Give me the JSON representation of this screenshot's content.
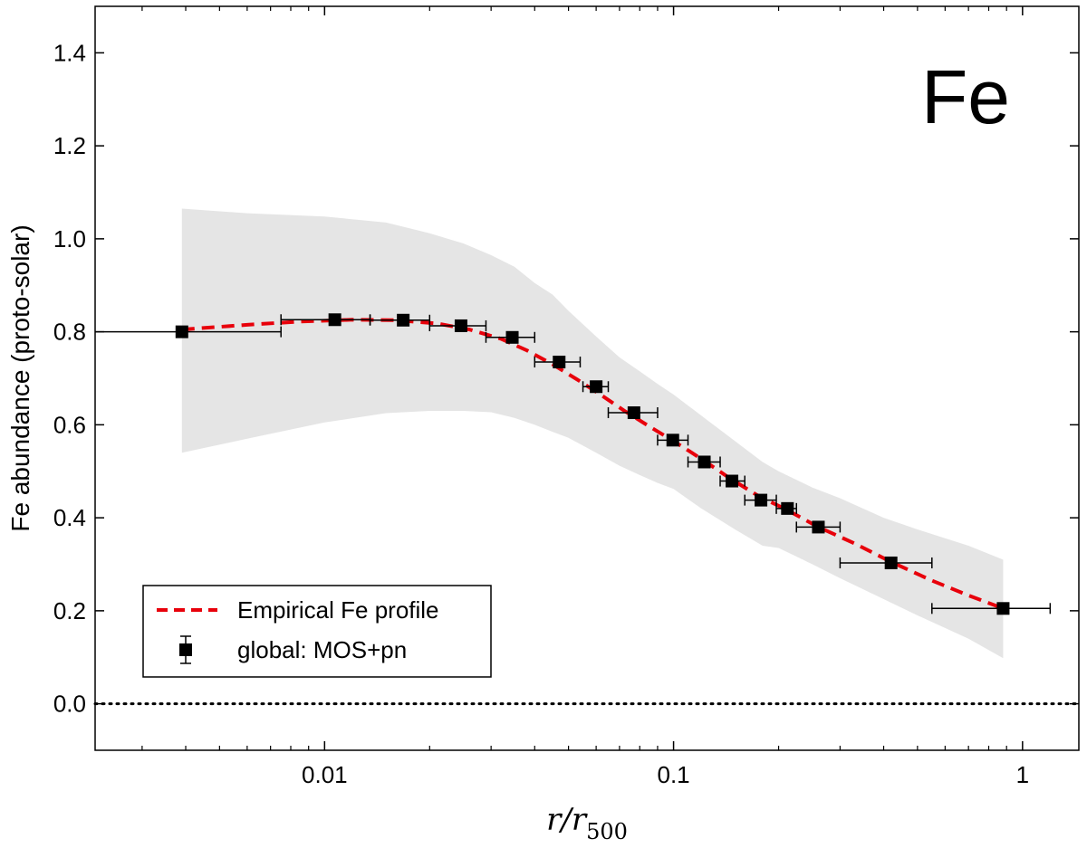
{
  "chart_data": {
    "type": "scatter",
    "title": "",
    "annotation": "Fe",
    "xlabel": "r/r",
    "xlabel_sub": "500",
    "ylabel": "Fe abundance (proto-solar)",
    "xscale": "log",
    "xlim": [
      0.0022,
      1.45
    ],
    "ylim": [
      -0.1,
      1.5
    ],
    "x_ticks": [
      0.01,
      0.1,
      1
    ],
    "x_tick_labels": [
      "0.01",
      "0.1",
      "1"
    ],
    "y_ticks": [
      0.0,
      0.2,
      0.4,
      0.6,
      0.8,
      1.0,
      1.2,
      1.4
    ],
    "y_tick_labels": [
      "0.0",
      "0.2",
      "0.4",
      "0.6",
      "0.8",
      "1.0",
      "1.2",
      "1.4"
    ],
    "reference_line": {
      "y": 0.0,
      "style": "dotted"
    },
    "legend": {
      "location": "lower-left",
      "entries": [
        "Empirical Fe profile",
        "global: MOS+pn"
      ]
    },
    "series": [
      {
        "name": "global: MOS+pn",
        "kind": "errorbar",
        "color": "#000000",
        "points": [
          {
            "x": 0.0039,
            "y": 0.8,
            "xlo": 0.0022,
            "xhi": 0.0075
          },
          {
            "x": 0.0107,
            "y": 0.826,
            "xlo": 0.0075,
            "xhi": 0.0135
          },
          {
            "x": 0.0168,
            "y": 0.825,
            "xlo": 0.0135,
            "xhi": 0.02
          },
          {
            "x": 0.0246,
            "y": 0.813,
            "xlo": 0.02,
            "xhi": 0.029
          },
          {
            "x": 0.0345,
            "y": 0.788,
            "xlo": 0.029,
            "xhi": 0.04
          },
          {
            "x": 0.047,
            "y": 0.735,
            "xlo": 0.04,
            "xhi": 0.054
          },
          {
            "x": 0.06,
            "y": 0.682,
            "xlo": 0.055,
            "xhi": 0.065
          },
          {
            "x": 0.077,
            "y": 0.626,
            "xlo": 0.065,
            "xhi": 0.09
          },
          {
            "x": 0.0995,
            "y": 0.567,
            "xlo": 0.09,
            "xhi": 0.11
          },
          {
            "x": 0.1225,
            "y": 0.52,
            "xlo": 0.11,
            "xhi": 0.136
          },
          {
            "x": 0.147,
            "y": 0.479,
            "xlo": 0.136,
            "xhi": 0.16
          },
          {
            "x": 0.178,
            "y": 0.438,
            "xlo": 0.16,
            "xhi": 0.197
          },
          {
            "x": 0.212,
            "y": 0.42,
            "xlo": 0.197,
            "xhi": 0.225
          },
          {
            "x": 0.26,
            "y": 0.38,
            "xlo": 0.225,
            "xhi": 0.3
          },
          {
            "x": 0.42,
            "y": 0.303,
            "xlo": 0.3,
            "xhi": 0.55
          },
          {
            "x": 0.88,
            "y": 0.205,
            "xlo": 0.55,
            "xhi": 1.2
          }
        ]
      },
      {
        "name": "Empirical Fe profile",
        "kind": "line",
        "style": "dashed",
        "color": "#e8000b",
        "x": [
          0.0039,
          0.006,
          0.0085,
          0.012,
          0.016,
          0.021,
          0.026,
          0.032,
          0.038,
          0.045,
          0.053,
          0.062,
          0.073,
          0.085,
          0.1,
          0.12,
          0.145,
          0.175,
          0.21,
          0.26,
          0.33,
          0.42,
          0.55,
          0.7,
          0.88
        ],
        "y": [
          0.805,
          0.815,
          0.822,
          0.826,
          0.825,
          0.818,
          0.805,
          0.785,
          0.76,
          0.73,
          0.697,
          0.664,
          0.628,
          0.597,
          0.565,
          0.527,
          0.485,
          0.447,
          0.418,
          0.38,
          0.345,
          0.305,
          0.265,
          0.233,
          0.205
        ]
      },
      {
        "name": "scatter band",
        "kind": "band",
        "color": "#e5e5e5",
        "x": [
          0.0039,
          0.006,
          0.01,
          0.015,
          0.02,
          0.025,
          0.03,
          0.035,
          0.04,
          0.045,
          0.05,
          0.06,
          0.07,
          0.08,
          0.09,
          0.1,
          0.12,
          0.15,
          0.18,
          0.2,
          0.25,
          0.3,
          0.4,
          0.5,
          0.7,
          0.88
        ],
        "upper": [
          1.065,
          1.055,
          1.048,
          1.035,
          1.012,
          0.99,
          0.965,
          0.94,
          0.905,
          0.88,
          0.845,
          0.79,
          0.745,
          0.715,
          0.688,
          0.665,
          0.62,
          0.565,
          0.52,
          0.5,
          0.465,
          0.442,
          0.4,
          0.375,
          0.34,
          0.31
        ],
        "lower": [
          0.54,
          0.57,
          0.605,
          0.625,
          0.63,
          0.63,
          0.627,
          0.615,
          0.6,
          0.585,
          0.572,
          0.54,
          0.512,
          0.492,
          0.475,
          0.462,
          0.42,
          0.375,
          0.34,
          0.335,
          0.3,
          0.27,
          0.225,
          0.19,
          0.14,
          0.098
        ]
      }
    ]
  }
}
